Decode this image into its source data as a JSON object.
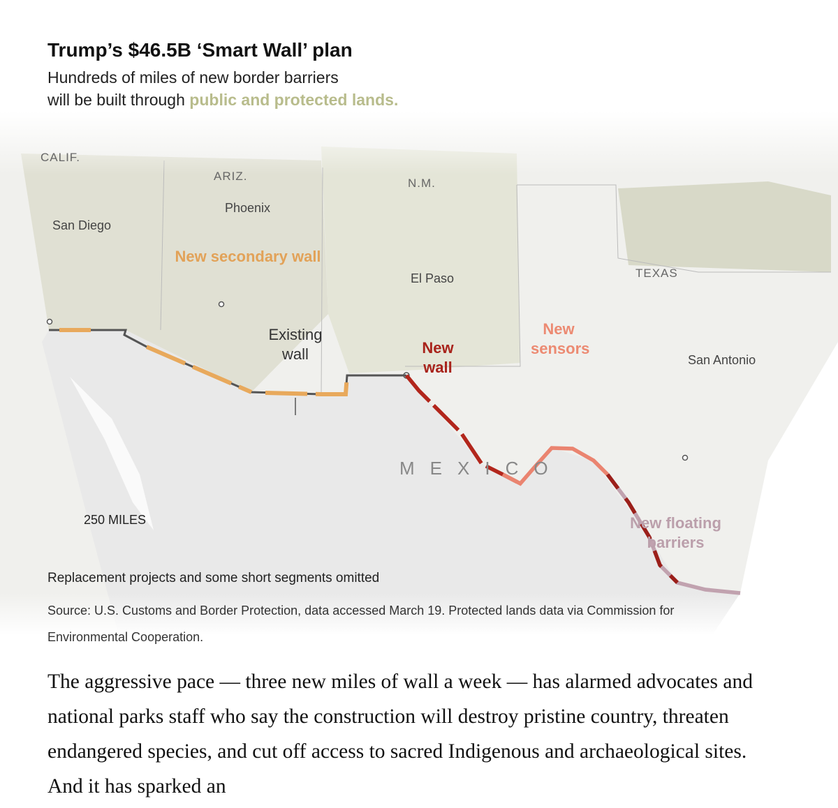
{
  "header": {
    "title": "Trump’s $46.5B ‘Smart Wall’ plan",
    "subtitle_line1": "Hundreds of miles of new border barriers",
    "subtitle_line2": "will be built through",
    "subtitle_highlight": "public and protected lands."
  },
  "map": {
    "state_labels": [
      "CALIF.",
      "ARIZ.",
      "N.M.",
      "TEXAS"
    ],
    "country_label": "MEXICO",
    "cities": [
      "San Diego",
      "Phoenix",
      "El Paso",
      "San Antonio"
    ],
    "legend": {
      "secondary_wall": "New secondary wall",
      "existing_wall": "Existing wall",
      "new_wall": "New wall",
      "new_sensors": "New sensors",
      "floating_barriers": "New floating barriers"
    },
    "scale": "250 MILES"
  },
  "notes": {
    "omitted": "Replacement projects and some short segments omitted",
    "source": "Source: U.S. Customs and Border Protection, data accessed March 19. Protected lands data via Commission for Environmental Cooperation."
  },
  "article": {
    "paragraph": "The aggressive pace — three new miles of wall a week — has alarmed advocates and national parks staff who say the construction will destroy pristine country, threaten endangered species, and cut off access to sacred Indigenous and archaeological sites. And it has sparked an"
  }
}
